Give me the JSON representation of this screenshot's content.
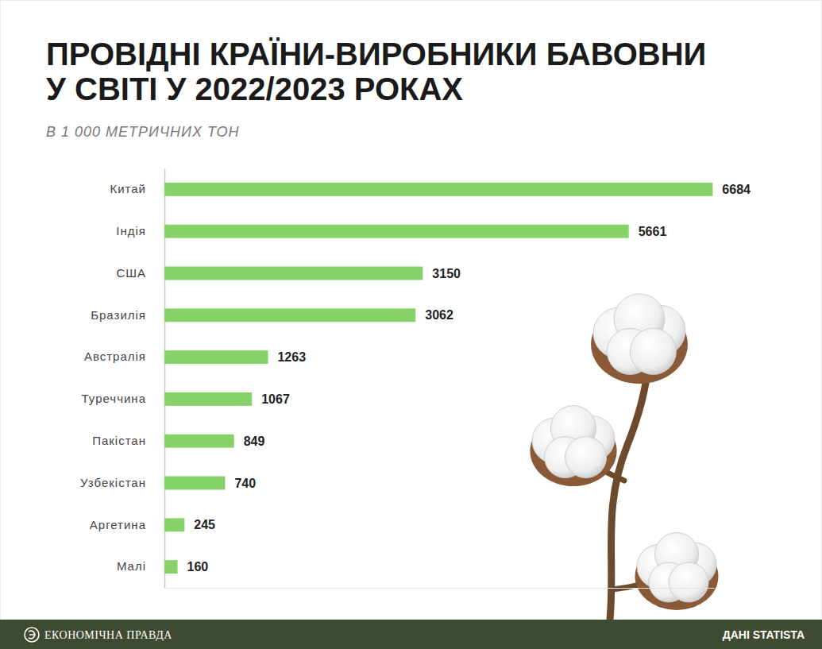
{
  "chart_data": {
    "type": "bar",
    "orientation": "horizontal",
    "title": "ПРОВІДНІ КРАЇНИ-ВИРОБНИКИ БАВОВНИ\nУ СВІТІ У 2022/2023 РОКАХ",
    "subtitle": "В 1 000 МЕТРИЧНИХ ТОН",
    "categories": [
      "Китай",
      "Індія",
      "США",
      "Бразилія",
      "Австралія",
      "Туреччина",
      "Пакістан",
      "Узбекістан",
      "Аргетина",
      "Малі"
    ],
    "values": [
      6684,
      5661,
      3150,
      3062,
      1263,
      1067,
      849,
      740,
      245,
      160
    ],
    "color": "#86d168",
    "xlim": [
      0,
      6700
    ],
    "data_labels": true,
    "tick_labels": "y",
    "publisher": "ЕКОНОМІЧНА ПРАВДА",
    "source": "ДАНІ STATISTA"
  }
}
